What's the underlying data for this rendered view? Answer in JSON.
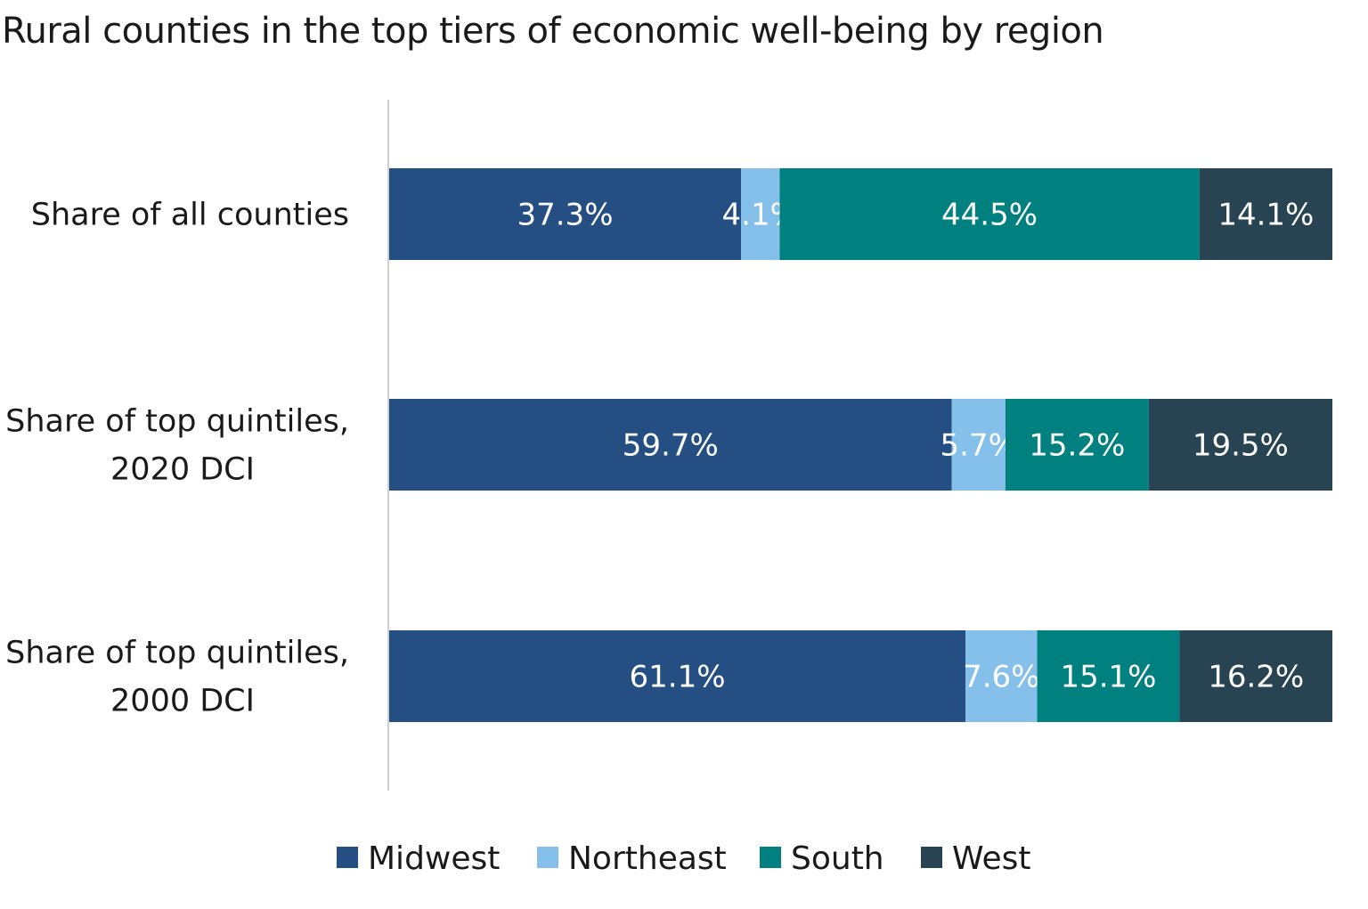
{
  "chart_data": {
    "type": "bar",
    "orientation": "horizontal",
    "stacked": true,
    "title": "Rural counties in the top tiers of economic well-being by region",
    "categories": [
      [
        "Share of all counties"
      ],
      [
        "Share of top quintiles,",
        "2020 DCI"
      ],
      [
        "Share of top quintiles,",
        "2000 DCI"
      ]
    ],
    "series": [
      {
        "name": "Midwest",
        "color": "#254f83",
        "values": [
          37.3,
          59.7,
          61.1
        ]
      },
      {
        "name": "Northeast",
        "color": "#85c0ea",
        "values": [
          4.1,
          5.7,
          7.6
        ]
      },
      {
        "name": "South",
        "color": "#00807f",
        "values": [
          44.5,
          15.2,
          15.1
        ]
      },
      {
        "name": "West",
        "color": "#284452",
        "values": [
          14.1,
          19.5,
          16.2
        ]
      }
    ],
    "value_format": "percent-1dp",
    "legend_position": "bottom",
    "grid": false
  }
}
